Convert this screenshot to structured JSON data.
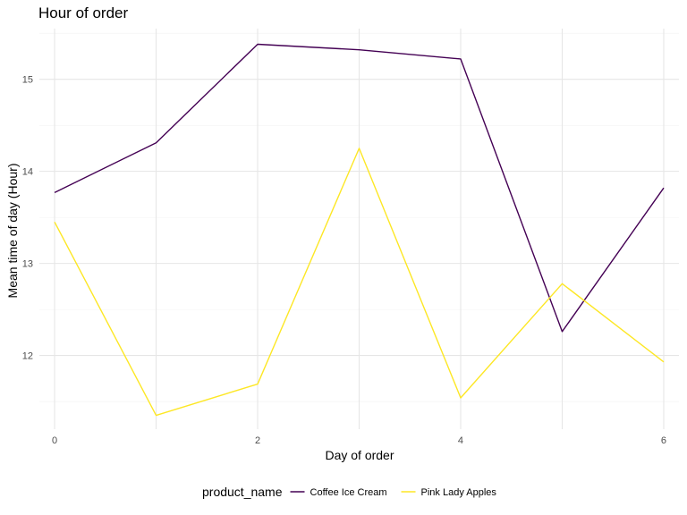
{
  "chart_data": {
    "type": "line",
    "title": "Hour of order",
    "xlabel": "Day of order",
    "ylabel": "Mean time of day (Hour)",
    "x": [
      0,
      1,
      2,
      3,
      4,
      5,
      6
    ],
    "xlim": [
      -0.15,
      6.15
    ],
    "ylim": [
      11.2,
      15.55
    ],
    "xticks": [
      0,
      2,
      4,
      6
    ],
    "xminor": [
      1,
      3,
      5
    ],
    "yticks": [
      12,
      13,
      14,
      15
    ],
    "yminor": [
      11.5,
      12.5,
      13.5,
      14.5,
      15.5
    ],
    "grid": true,
    "legend": {
      "title": "product_name",
      "position": "bottom"
    },
    "series": [
      {
        "name": "Coffee Ice Cream",
        "color": "#440154",
        "values": [
          13.77,
          14.31,
          15.38,
          15.32,
          15.22,
          12.26,
          13.82
        ]
      },
      {
        "name": "Pink Lady Apples",
        "color": "#FDE725",
        "values": [
          13.45,
          11.35,
          11.69,
          14.25,
          11.54,
          12.78,
          11.93
        ]
      }
    ]
  }
}
